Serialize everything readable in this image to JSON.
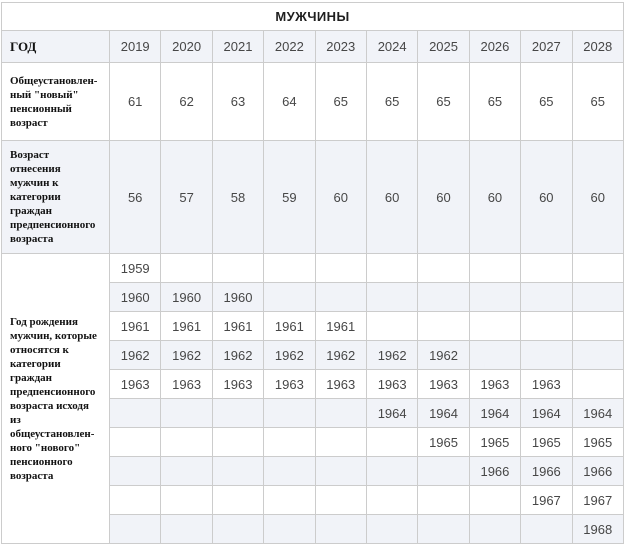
{
  "table": {
    "title": "МУЖЧИНЫ",
    "year_header": "ГОД",
    "years": [
      "2019",
      "2020",
      "2021",
      "2022",
      "2023",
      "2024",
      "2025",
      "2026",
      "2027",
      "2028"
    ],
    "stat_rows": [
      {
        "name": "general-new-pension-age",
        "label": "Общеустановлен-\nный \"новый\"\nпенсионный\nвозраст",
        "values": [
          "61",
          "62",
          "63",
          "64",
          "65",
          "65",
          "65",
          "65",
          "65",
          "65"
        ]
      },
      {
        "name": "pre-pension-age-threshold",
        "label": "Возраст\nотнесения\nмужчин к\nкатегории\nграждан\nпредпенсионного\nвозраста",
        "values": [
          "56",
          "57",
          "58",
          "59",
          "60",
          "60",
          "60",
          "60",
          "60",
          "60"
        ]
      }
    ],
    "birth_section": {
      "label": "Год рождения\nмужчин, которые\nотносятся к\nкатегории\nграждан\nпредпенсионного\nвозраста исходя\nиз\nобщеустановлен-\nного \"нового\"\nпенсионного\nвозраста",
      "rows": [
        [
          "1959",
          "",
          "",
          "",
          "",
          "",
          "",
          "",
          "",
          ""
        ],
        [
          "1960",
          "1960",
          "1960",
          "",
          "",
          "",
          "",
          "",
          "",
          ""
        ],
        [
          "1961",
          "1961",
          "1961",
          "1961",
          "1961",
          "",
          "",
          "",
          "",
          ""
        ],
        [
          "1962",
          "1962",
          "1962",
          "1962",
          "1962",
          "1962",
          "1962",
          "",
          "",
          ""
        ],
        [
          "1963",
          "1963",
          "1963",
          "1963",
          "1963",
          "1963",
          "1963",
          "1963",
          "1963",
          ""
        ],
        [
          "",
          "",
          "",
          "",
          "",
          "1964",
          "1964",
          "1964",
          "1964",
          "1964"
        ],
        [
          "",
          "",
          "",
          "",
          "",
          "",
          "1965",
          "1965",
          "1965",
          "1965"
        ],
        [
          "",
          "",
          "",
          "",
          "",
          "",
          "",
          "1966",
          "1966",
          "1966"
        ],
        [
          "",
          "",
          "",
          "",
          "",
          "",
          "",
          "",
          "1967",
          "1967"
        ],
        [
          "",
          "",
          "",
          "",
          "",
          "",
          "",
          "",
          "",
          "1968"
        ]
      ]
    }
  },
  "colors": {
    "stripe": "#f1f3f8",
    "border": "#cccccc",
    "number_text": "#474747",
    "label_text": "#121212",
    "background": "#ffffff"
  },
  "chart_data": {
    "type": "table",
    "title": "МУЖЧИНЫ",
    "columns": [
      "ГОД",
      2019,
      2020,
      2021,
      2022,
      2023,
      2024,
      2025,
      2026,
      2027,
      2028
    ],
    "rows": [
      {
        "label": "Общеустановленный \"новый\" пенсионный возраст",
        "values": [
          61,
          62,
          63,
          64,
          65,
          65,
          65,
          65,
          65,
          65
        ]
      },
      {
        "label": "Возраст отнесения мужчин к категории граждан предпенсионного возраста",
        "values": [
          56,
          57,
          58,
          59,
          60,
          60,
          60,
          60,
          60,
          60
        ]
      },
      {
        "label": "Год рождения мужчин, которые относятся к категории граждан предпенсионного возраста исходя из общеустановленного \"нового\" пенсионного возраста",
        "values": [
          [
            1959,
            null,
            null,
            null,
            null,
            null,
            null,
            null,
            null,
            null
          ],
          [
            1960,
            1960,
            1960,
            null,
            null,
            null,
            null,
            null,
            null,
            null
          ],
          [
            1961,
            1961,
            1961,
            1961,
            1961,
            null,
            null,
            null,
            null,
            null
          ],
          [
            1962,
            1962,
            1962,
            1962,
            1962,
            1962,
            1962,
            null,
            null,
            null
          ],
          [
            1963,
            1963,
            1963,
            1963,
            1963,
            1963,
            1963,
            1963,
            1963,
            null
          ],
          [
            null,
            null,
            null,
            null,
            null,
            1964,
            1964,
            1964,
            1964,
            1964
          ],
          [
            null,
            null,
            null,
            null,
            null,
            null,
            1965,
            1965,
            1965,
            1965
          ],
          [
            null,
            null,
            null,
            null,
            null,
            null,
            null,
            1966,
            1966,
            1966
          ],
          [
            null,
            null,
            null,
            null,
            null,
            null,
            null,
            null,
            1967,
            1967
          ],
          [
            null,
            null,
            null,
            null,
            null,
            null,
            null,
            null,
            null,
            1968
          ]
        ]
      }
    ]
  }
}
